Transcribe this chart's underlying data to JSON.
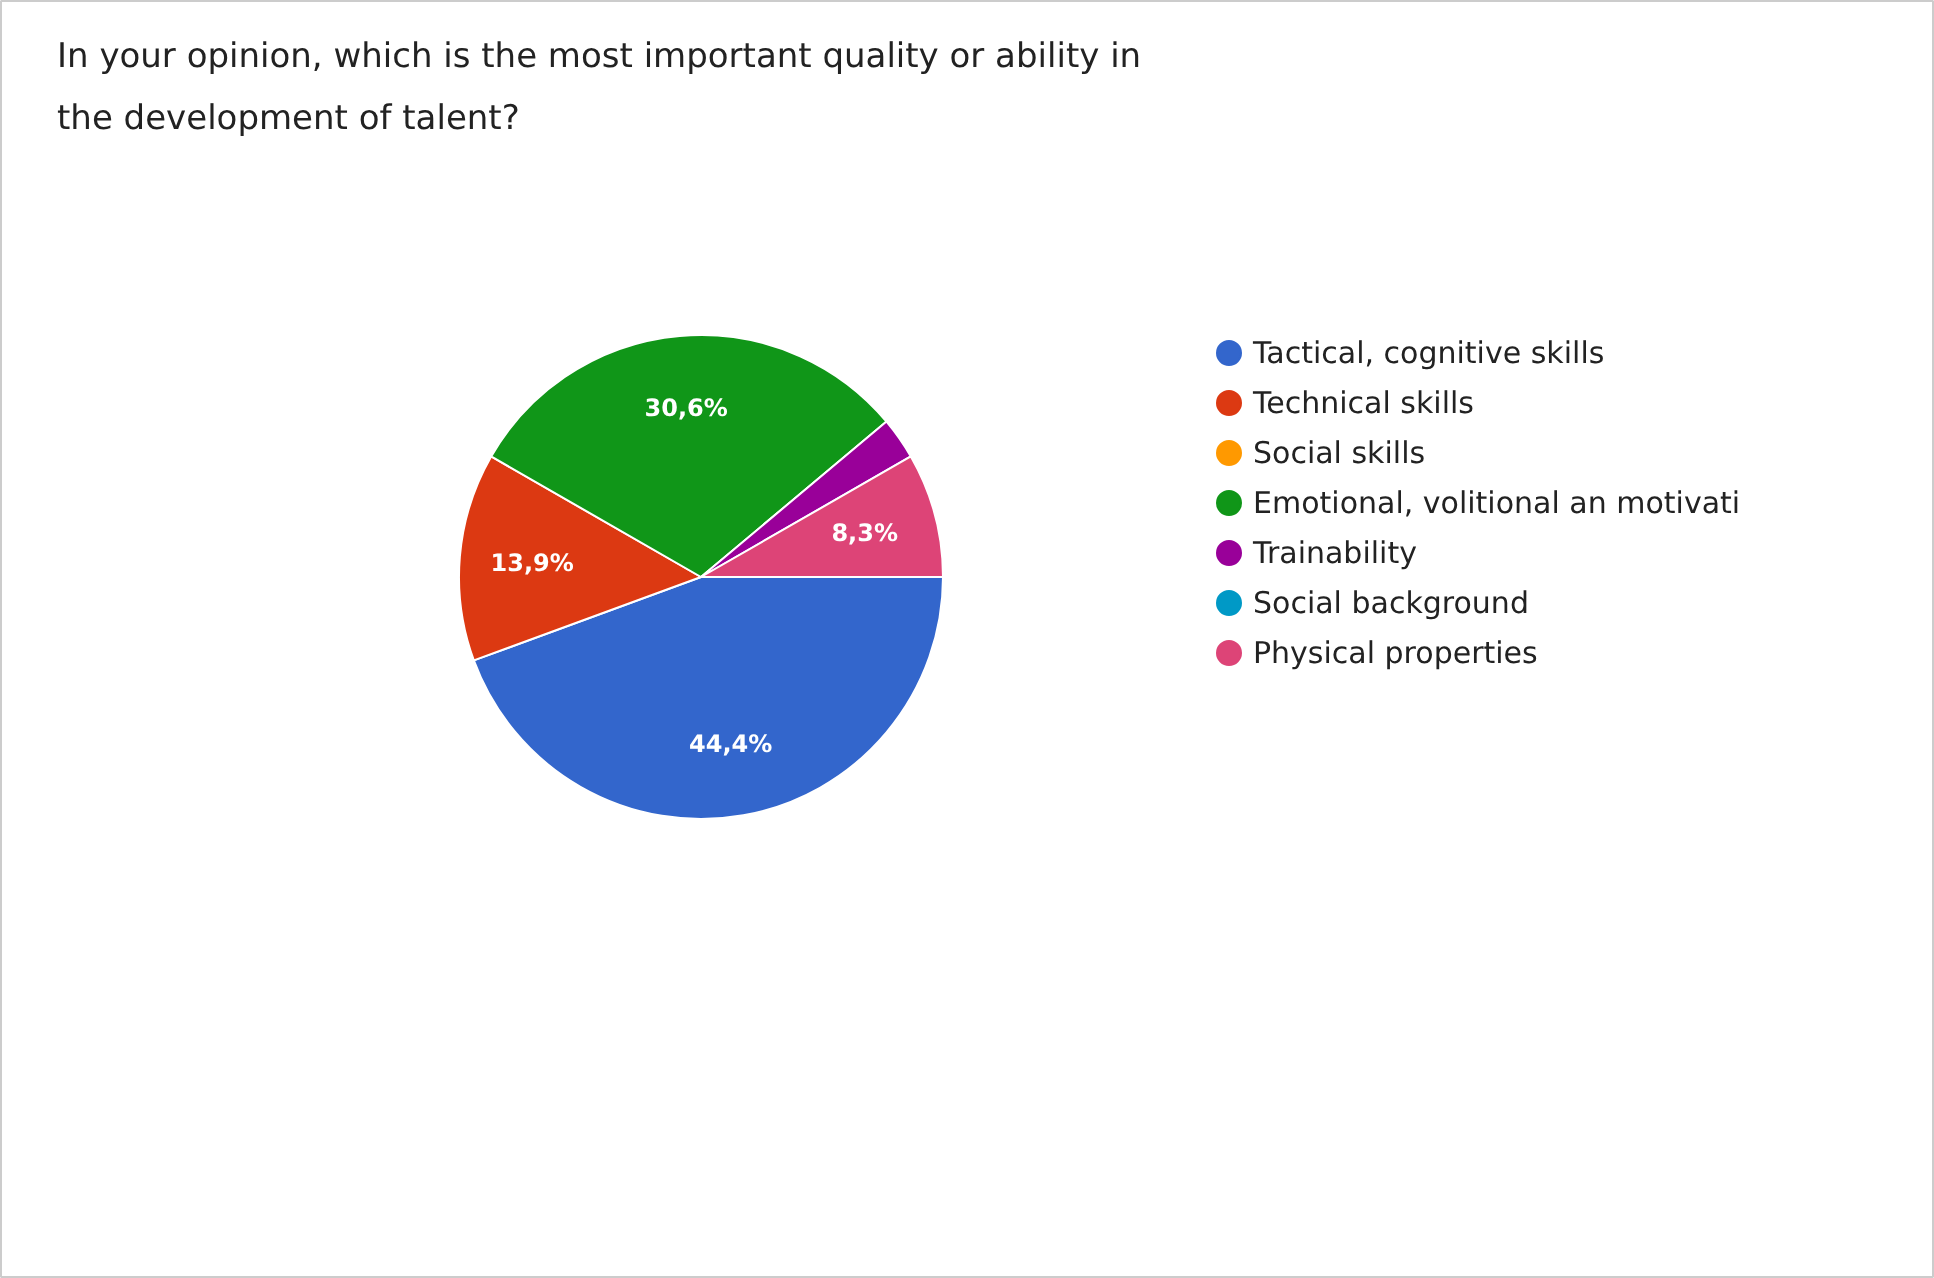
{
  "chart_data": {
    "type": "pie",
    "title": "In your opinion, which is the most important quality or ability in the development of talent?",
    "categories": [
      "Tactical, cognitive skills",
      "Technical skills",
      "Social skills",
      "Emotional, volitional an motivati",
      "Trainability",
      "Social background",
      "Physical properties"
    ],
    "values": [
      44.4,
      13.9,
      0,
      30.6,
      2.8,
      0,
      8.3
    ],
    "colors": [
      "#3366cc",
      "#dc3912",
      "#ff9900",
      "#109618",
      "#990099",
      "#0099c6",
      "#dd4477"
    ],
    "value_labels": [
      "44,4%",
      "13,9%",
      null,
      "30,6%",
      null,
      null,
      "8,3%"
    ],
    "legend": "right"
  }
}
